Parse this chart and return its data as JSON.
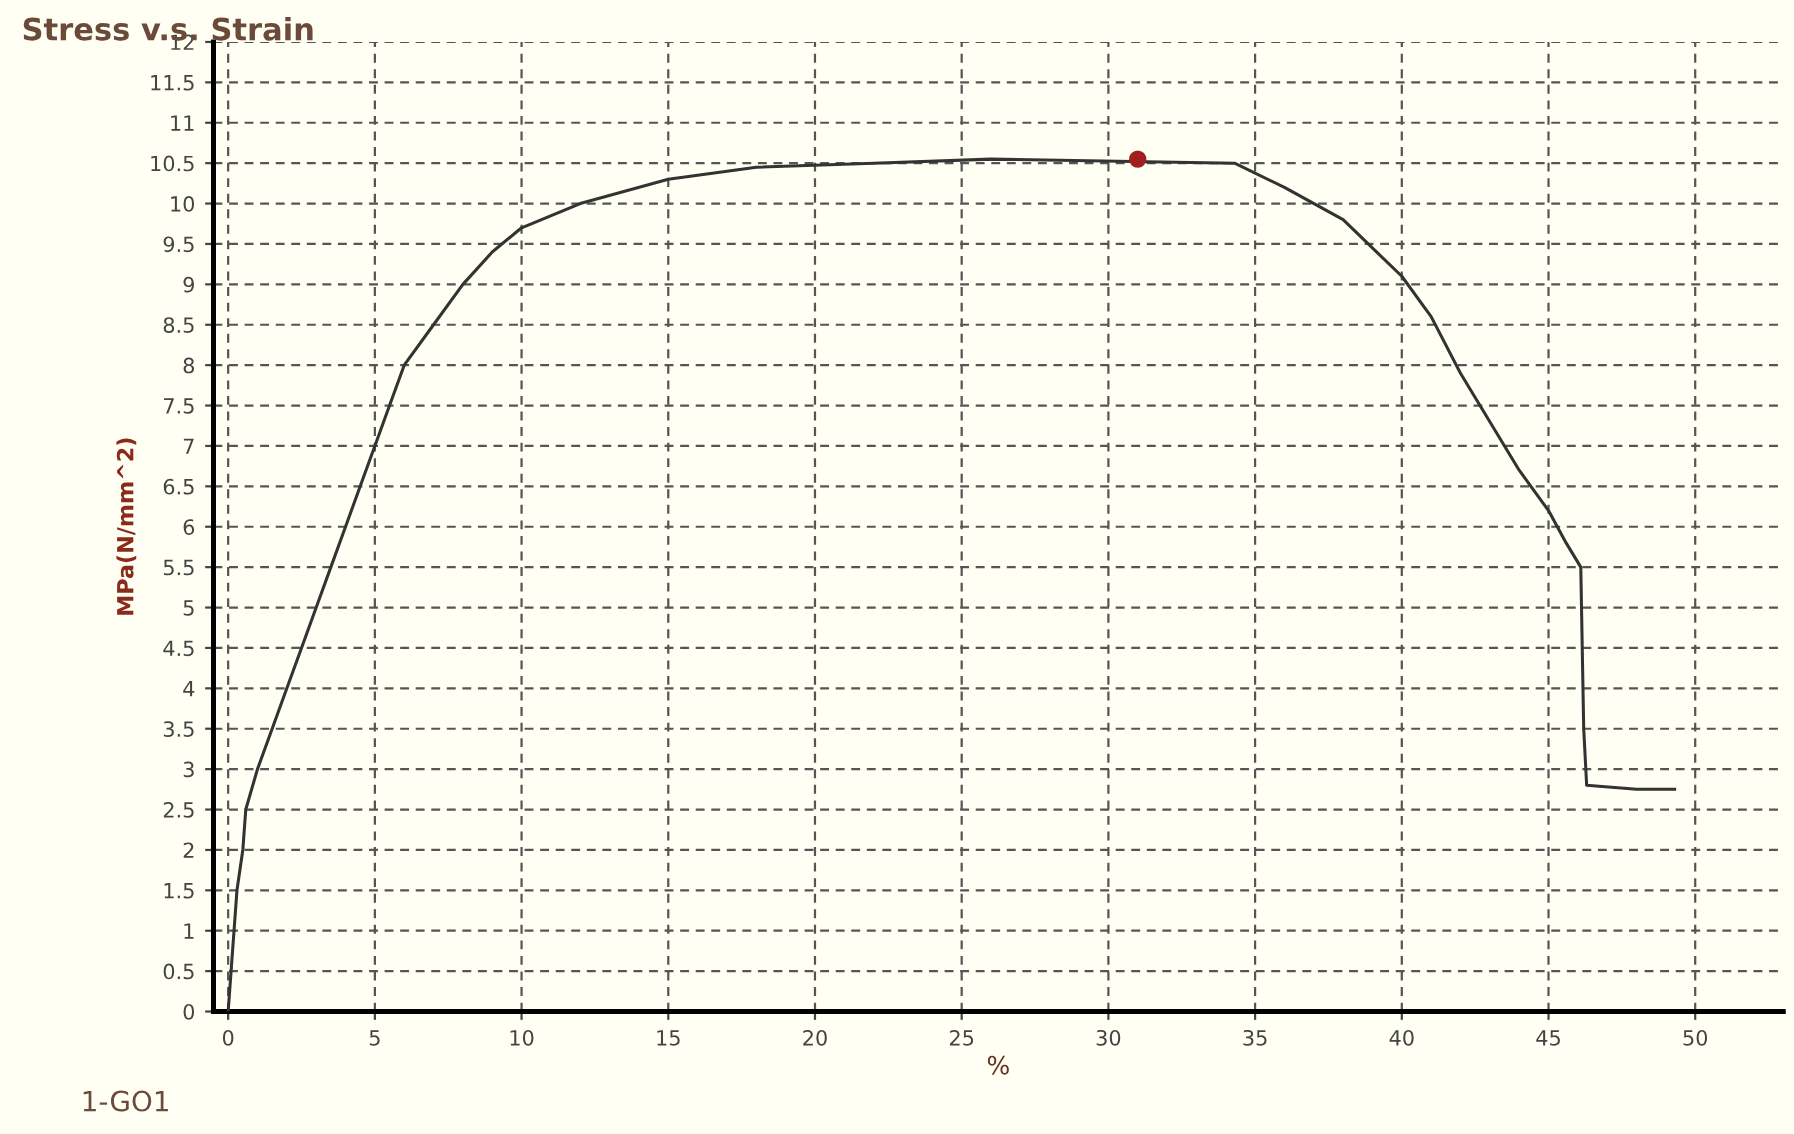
{
  "chart_data": {
    "type": "line",
    "title": "Stress v.s. Strain",
    "xlabel": "%",
    "ylabel": "MPa(N/mm^2)",
    "annotations": [
      "1-GO1"
    ],
    "series": [
      {
        "color": "#333333",
        "x": [
          0,
          0.1,
          0.3,
          0.5,
          0.6,
          1,
          1.5,
          2,
          2.5,
          3,
          3.5,
          4,
          4.5,
          5,
          5.5,
          6,
          7,
          8,
          9,
          10,
          12,
          15,
          18,
          22,
          26,
          34.3,
          36,
          38,
          40,
          41,
          42,
          43,
          44,
          45,
          45.6,
          46.1,
          46.2,
          46.3,
          48,
          49.3
        ],
        "values": [
          0,
          0.5,
          1.5,
          2.0,
          2.5,
          3.0,
          3.5,
          4.0,
          4.5,
          5.0,
          5.5,
          6.0,
          6.5,
          7.0,
          7.5,
          8.0,
          8.5,
          9.0,
          9.4,
          9.7,
          10.0,
          10.3,
          10.45,
          10.5,
          10.55,
          10.5,
          10.2,
          9.8,
          9.1,
          8.6,
          7.9,
          7.3,
          6.7,
          6.2,
          5.8,
          5.5,
          3.5,
          2.8,
          2.75,
          2.75
        ]
      },
      {
        "type": "scatter",
        "color": "#a02020",
        "marker": "circle",
        "x": [
          31
        ],
        "values": [
          10.55
        ]
      }
    ],
    "xlim": [
      -0.5,
      53
    ],
    "ylim": [
      0,
      12
    ],
    "xticks": [
      0,
      5,
      10,
      15,
      20,
      25,
      30,
      35,
      40,
      45,
      50
    ],
    "yticks": [
      0,
      0.5,
      1,
      1.5,
      2,
      2.5,
      3,
      3.5,
      4,
      4.5,
      5,
      5.5,
      6,
      6.5,
      7,
      7.5,
      8,
      8.5,
      9,
      9.5,
      10,
      10.5,
      11,
      11.5,
      12
    ],
    "grid": true,
    "line_style": "solid",
    "marker": "none"
  }
}
